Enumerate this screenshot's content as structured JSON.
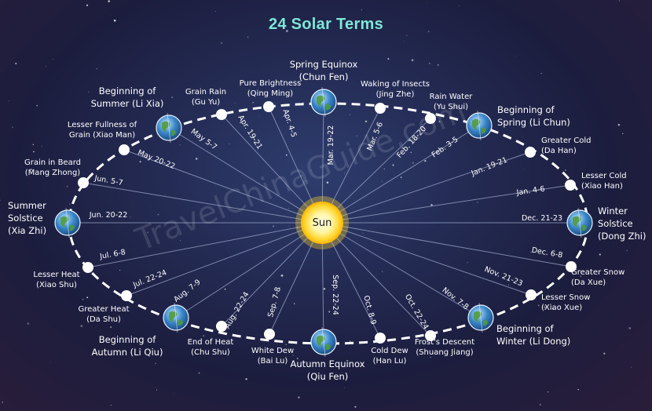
{
  "title": "24 Solar Terms",
  "center_label": "Sun",
  "watermark": "TravelChinaGuide.com",
  "colors": {
    "title": "#7fe6d8",
    "orbit": "#ffffff",
    "rays": "#9aa6c8",
    "sun": "#ffd633",
    "earth": "#3a86c8"
  },
  "terms": [
    {
      "name": "Spring Equinox",
      "pinyin": "(Chun Fen)",
      "date": "Mar. 19-22",
      "major": true
    },
    {
      "name": "Waking of Insects",
      "pinyin": "(Jing Zhe)",
      "date": "Mar. 5-6",
      "major": false
    },
    {
      "name": "Rain Water",
      "pinyin": "(Yu Shui)",
      "date": "Feb. 18-20",
      "major": false
    },
    {
      "name": "Beginning of",
      "pinyin": "Spring (Li Chun)",
      "date": "Feb. 3-5",
      "major": true
    },
    {
      "name": "Greater Cold",
      "pinyin": "(Da Han)",
      "date": "Jan. 19-21",
      "major": false
    },
    {
      "name": "Lesser Cold",
      "pinyin": "(Xiao Han)",
      "date": "Jan. 4-6",
      "major": false
    },
    {
      "name": "Winter",
      "pinyin": "Solstice\n(Dong Zhi)",
      "date": "Dec. 21-23",
      "major": true
    },
    {
      "name": "Greater Snow",
      "pinyin": "(Da Xue)",
      "date": "Dec. 6-8",
      "major": false
    },
    {
      "name": "Lesser Snow",
      "pinyin": "(Xiao Xue)",
      "date": "Nov. 21-23",
      "major": false
    },
    {
      "name": "Beginning of",
      "pinyin": "Winter (Li Dong)",
      "date": "Nov. 7-8",
      "major": true
    },
    {
      "name": "Frost's Descent",
      "pinyin": "(Shuang Jiang)",
      "date": "Oct. 22-24",
      "major": false
    },
    {
      "name": "Cold Dew",
      "pinyin": "(Han Lu)",
      "date": "Oct. 8-9",
      "major": false
    },
    {
      "name": "Autumn Equinox",
      "pinyin": "(Qiu Fen)",
      "date": "Sep. 22-24",
      "major": true
    },
    {
      "name": "White Dew",
      "pinyin": "(Bai Lu)",
      "date": "Sep. 7-8",
      "major": false
    },
    {
      "name": "End of Heat",
      "pinyin": "(Chu Shu)",
      "date": "Aug. 22-24",
      "major": false
    },
    {
      "name": "Beginning of",
      "pinyin": "Autumn (Li Qiu)",
      "date": "Aug. 7-9",
      "major": true
    },
    {
      "name": "Greater Heat",
      "pinyin": "(Da Shu)",
      "date": "Jul. 22-24",
      "major": false
    },
    {
      "name": "Lesser Heat",
      "pinyin": "(Xiao Shu)",
      "date": "Jul. 6-8",
      "major": false
    },
    {
      "name": "Summer",
      "pinyin": "Solstice\n(Xia Zhi)",
      "date": "Jun. 20-22",
      "major": true
    },
    {
      "name": "Grain in Beard",
      "pinyin": "(Mang Zhong)",
      "date": "Jun. 5-7",
      "major": false
    },
    {
      "name": "Lesser Fullness of",
      "pinyin": "Grain (Xiao Man)",
      "date": "May 20-22",
      "major": false
    },
    {
      "name": "Beginning of",
      "pinyin": "Summer (Li Xia)",
      "date": "May 5-7",
      "major": true
    },
    {
      "name": "Grain Rain",
      "pinyin": "(Gu Yu)",
      "date": "Apr. 19-21",
      "major": false
    },
    {
      "name": "Pure Brightness",
      "pinyin": "(Qing Ming)",
      "date": "Apr. 4-5",
      "major": false
    }
  ]
}
